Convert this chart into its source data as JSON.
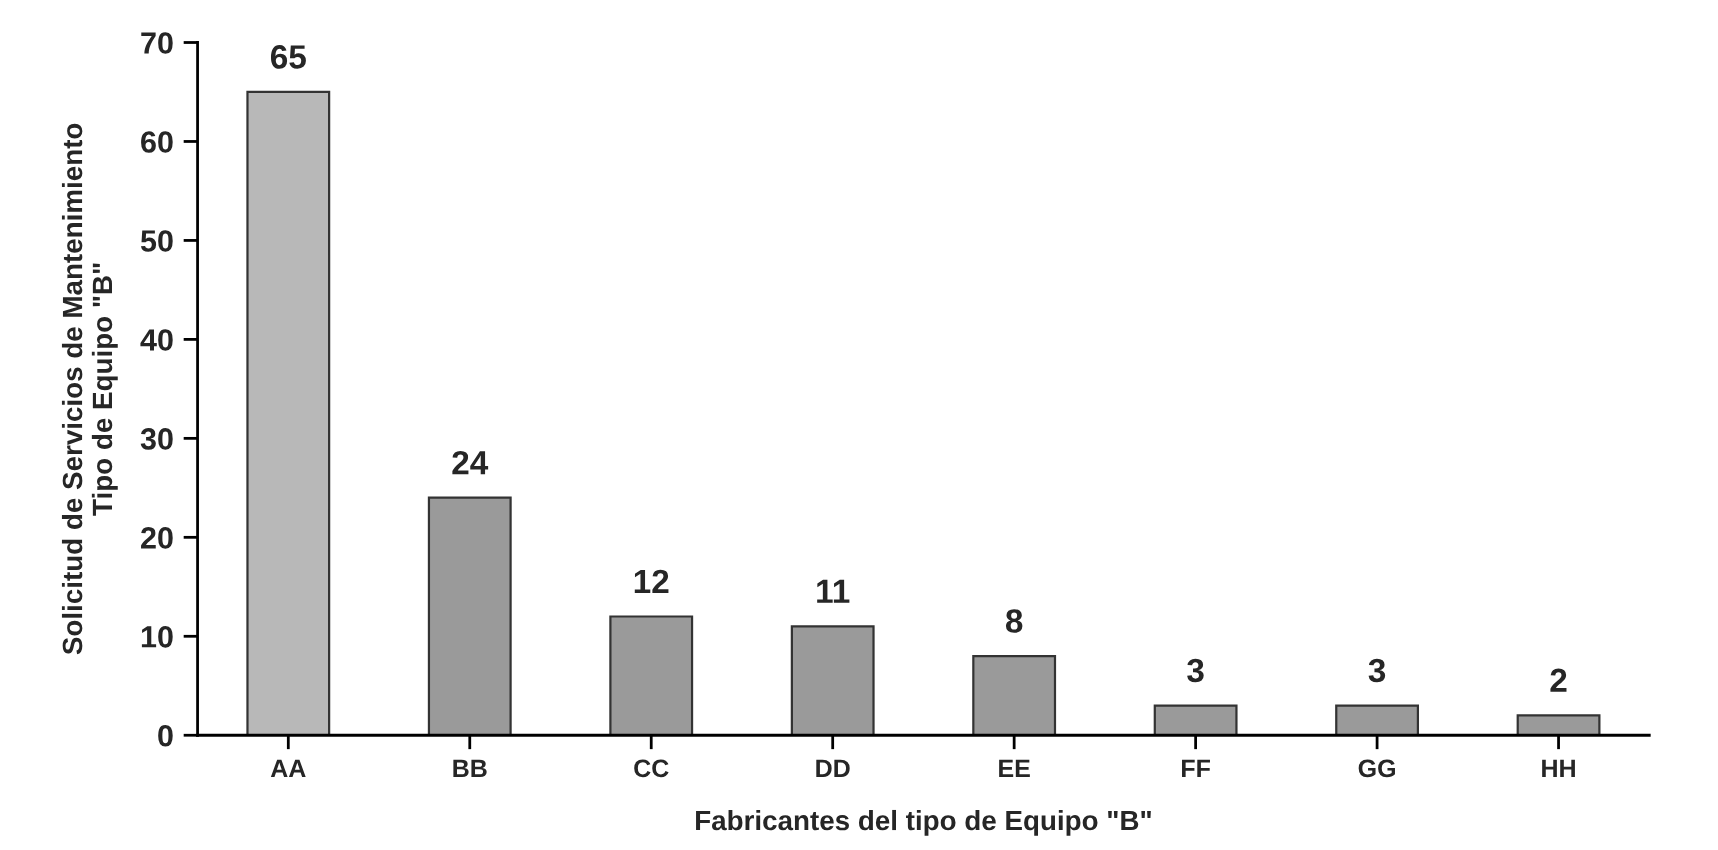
{
  "chart_data": {
    "type": "bar",
    "xlabel": "Fabricantes del tipo de Equipo \"B\"",
    "ylabel": "Solicitud de Servicios de Mantenimiento\nTipo de Equipo \"B\"",
    "categories": [
      "AA",
      "BB",
      "CC",
      "DD",
      "EE",
      "FF",
      "GG",
      "HH"
    ],
    "values": [
      65,
      24,
      12,
      11,
      8,
      3,
      3,
      2
    ],
    "colors": [
      "#b8b8b8",
      "#9a9a9a",
      "#9a9a9a",
      "#9a9a9a",
      "#9a9a9a",
      "#9a9a9a",
      "#9a9a9a",
      "#9a9a9a"
    ],
    "ylim": [
      0,
      70
    ],
    "yticks": [
      0,
      10,
      20,
      30,
      40,
      50,
      60,
      70
    ],
    "data_labels": true,
    "grid": false,
    "legend": false
  }
}
